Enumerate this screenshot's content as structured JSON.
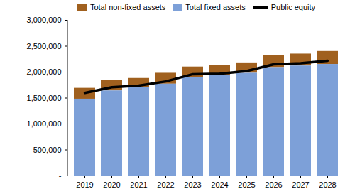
{
  "chart_data": {
    "type": "bar",
    "stacked": true,
    "grid": false,
    "legend": "top",
    "categories": [
      "2019",
      "2020",
      "2021",
      "2022",
      "2023",
      "2024",
      "2025",
      "2026",
      "2027",
      "2028"
    ],
    "series": [
      {
        "name": "Total non-fixed assets",
        "type": "bar",
        "color": "#a0601e",
        "values": [
          210000,
          200000,
          180000,
          210000,
          200000,
          190000,
          200000,
          230000,
          230000,
          250000
        ]
      },
      {
        "name": "Total fixed assets",
        "type": "bar",
        "color": "#7da0d8",
        "values": [
          1480000,
          1640000,
          1700000,
          1770000,
          1900000,
          1940000,
          1980000,
          2090000,
          2120000,
          2150000
        ]
      },
      {
        "name": "Public equity",
        "type": "line",
        "color": "#000000",
        "values": [
          1600000,
          1710000,
          1740000,
          1820000,
          1960000,
          1970000,
          2020000,
          2150000,
          2170000,
          2220000
        ]
      }
    ],
    "ylim": [
      0,
      3000000
    ],
    "yticks": [
      {
        "value": 0,
        "label": "-"
      },
      {
        "value": 500000,
        "label": "500,000"
      },
      {
        "value": 1000000,
        "label": "1,000,000"
      },
      {
        "value": 1500000,
        "label": "1,500,000"
      },
      {
        "value": 2000000,
        "label": "2,000,000"
      },
      {
        "value": 2500000,
        "label": "2,500,000"
      },
      {
        "value": 3000000,
        "label": "3,000,000"
      }
    ]
  }
}
